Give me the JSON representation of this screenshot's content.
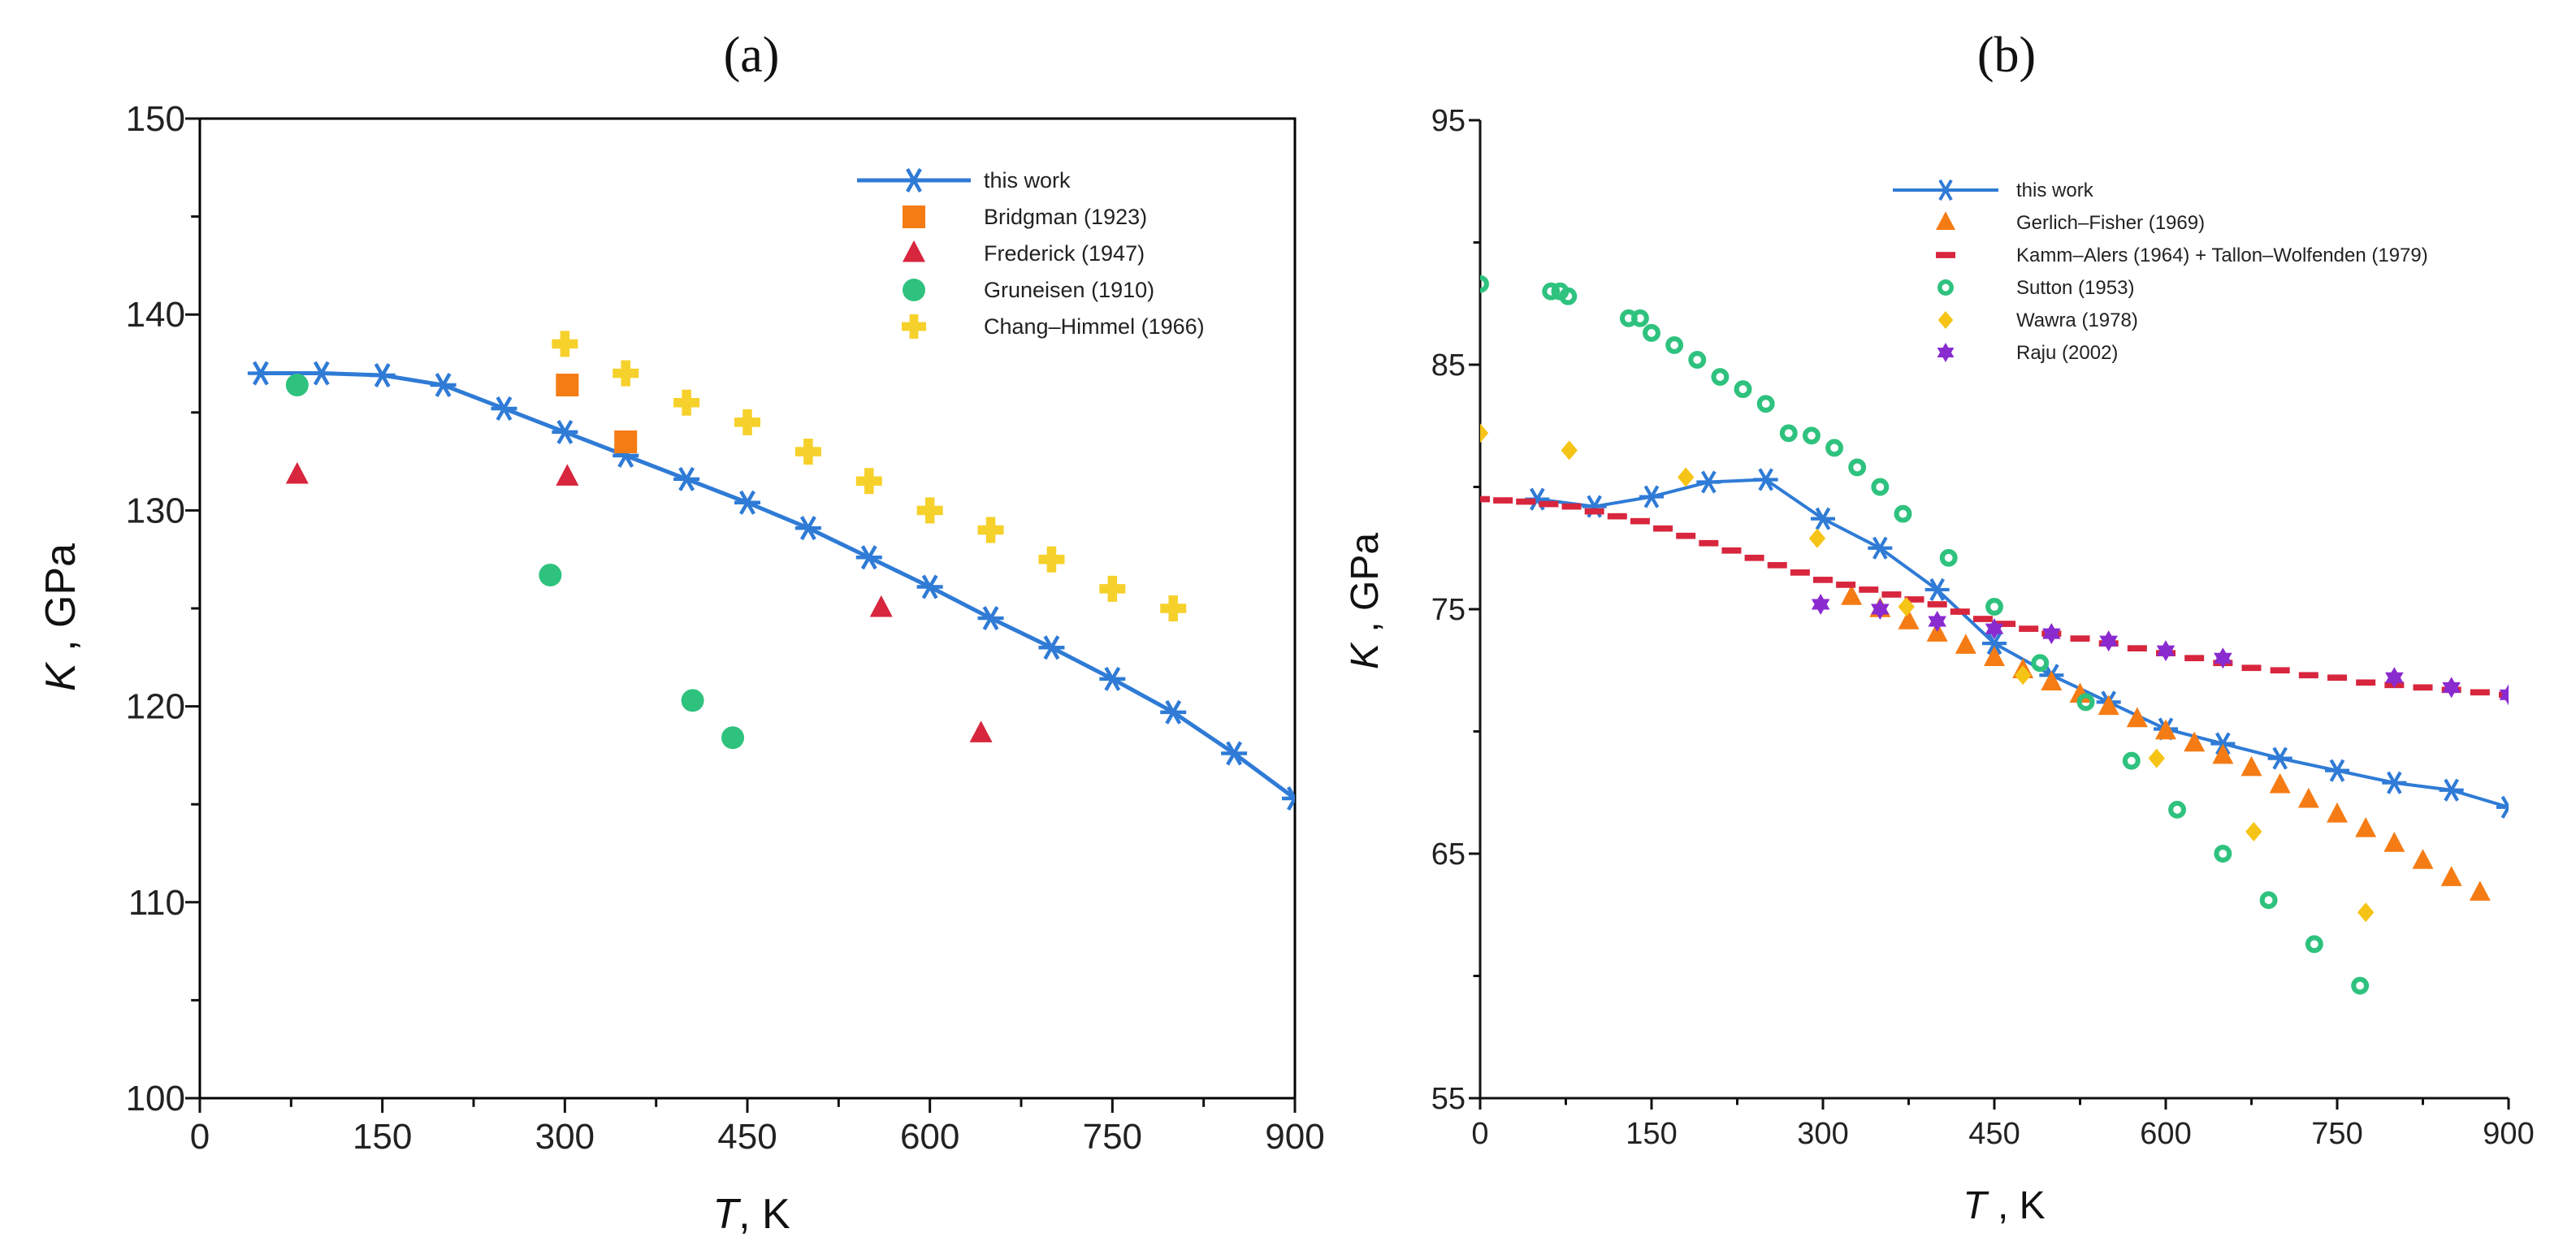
{
  "chart_data": [
    {
      "type": "scatter",
      "panel_label": "(a)",
      "xlabel_var": "T",
      "xlabel_unit": ", K",
      "ylabel_var": "K",
      "ylabel_unit": " , GPa",
      "xlim": [
        0,
        900
      ],
      "ylim": [
        100,
        150
      ],
      "xticks": [
        0,
        150,
        300,
        450,
        600,
        750,
        900
      ],
      "xticks_minor": [
        75,
        225,
        375,
        525,
        675,
        825
      ],
      "yticks": [
        100,
        110,
        120,
        130,
        140,
        150
      ],
      "yticks_minor": [
        105,
        115,
        125,
        135,
        145
      ],
      "grid": false,
      "legend_position": "top-right",
      "series": [
        {
          "name": "this work",
          "marker": "asterisk",
          "line": true,
          "color": "#2f7bd6",
          "x": [
            50,
            100,
            150,
            200,
            250,
            300,
            350,
            400,
            450,
            500,
            550,
            600,
            650,
            700,
            750,
            800,
            850,
            900
          ],
          "y": [
            137.0,
            137.0,
            136.9,
            136.4,
            135.2,
            134.0,
            132.8,
            131.6,
            130.4,
            129.1,
            127.6,
            126.1,
            124.5,
            123.0,
            121.4,
            119.7,
            117.6,
            115.3
          ]
        },
        {
          "name": "Bridgman (1923)",
          "marker": "square",
          "color": "#f57c14",
          "x": [
            302,
            350
          ],
          "y": [
            136.4,
            133.5
          ]
        },
        {
          "name": "Frederick (1947)",
          "marker": "triangle",
          "color": "#d7263d",
          "x": [
            80,
            302,
            560,
            642
          ],
          "y": [
            131.8,
            131.7,
            125.0,
            118.6
          ]
        },
        {
          "name": "Gruneisen (1910)",
          "marker": "circle",
          "color": "#2ec27e",
          "x": [
            80,
            288,
            405,
            438
          ],
          "y": [
            136.4,
            126.7,
            120.3,
            118.4
          ]
        },
        {
          "name": "Chang–Himmel (1966)",
          "marker": "plus",
          "color": "#f6d12b",
          "x": [
            300,
            350,
            400,
            450,
            500,
            550,
            600,
            650,
            700,
            750,
            800
          ],
          "y": [
            138.5,
            137.0,
            135.5,
            134.5,
            133.0,
            131.5,
            130.0,
            129.0,
            127.5,
            126.0,
            125.0
          ]
        }
      ]
    },
    {
      "type": "scatter",
      "panel_label": "(b)",
      "xlabel_var": "T",
      "xlabel_unit": " , K",
      "ylabel_var": "K",
      "ylabel_unit": " , GPa",
      "xlim": [
        0,
        900
      ],
      "ylim": [
        55,
        95
      ],
      "xticks": [
        0,
        150,
        300,
        450,
        600,
        750,
        900
      ],
      "xticks_minor": [
        75,
        225,
        375,
        525,
        675,
        825
      ],
      "yticks": [
        55,
        65,
        75,
        85,
        95
      ],
      "yticks_minor": [
        60,
        70,
        80,
        90
      ],
      "grid": false,
      "legend_position": "top-right",
      "series": [
        {
          "name": "this work",
          "marker": "asterisk",
          "line": true,
          "color": "#2f7bd6",
          "x": [
            50,
            100,
            150,
            200,
            250,
            300,
            350,
            400,
            450,
            500,
            550,
            600,
            650,
            700,
            750,
            800,
            850,
            900
          ],
          "y": [
            79.5,
            79.2,
            79.6,
            80.2,
            80.3,
            78.7,
            77.5,
            75.8,
            73.6,
            72.3,
            71.2,
            70.1,
            69.5,
            68.9,
            68.4,
            67.9,
            67.6,
            66.9
          ]
        },
        {
          "name": "Gerlich–Fisher (1969)",
          "marker": "triangle",
          "color": "#f57c14",
          "x": [
            325,
            350,
            375,
            400,
            425,
            450,
            475,
            500,
            525,
            550,
            575,
            600,
            625,
            650,
            675,
            700,
            725,
            750,
            775,
            800,
            825,
            850,
            875
          ],
          "y": [
            75.5,
            75.0,
            74.5,
            74.0,
            73.5,
            73.0,
            72.5,
            72.0,
            71.5,
            71.0,
            70.5,
            70.0,
            69.5,
            69.0,
            68.5,
            67.8,
            67.2,
            66.6,
            66.0,
            65.4,
            64.7,
            64.0,
            63.4
          ]
        },
        {
          "name": "Kamm–Alers (1964) + Tallon–Wolfenden (1979)",
          "marker": "dash",
          "color": "#d7263d",
          "x": [
            0,
            20,
            40,
            60,
            80,
            100,
            120,
            140,
            160,
            180,
            200,
            220,
            240,
            260,
            280,
            300,
            320,
            340,
            360,
            380,
            400,
            420,
            440,
            460,
            480,
            500,
            525,
            550,
            575,
            600,
            625,
            650,
            675,
            700,
            725,
            750,
            775,
            800,
            825,
            850,
            875,
            900
          ],
          "y": [
            79.5,
            79.45,
            79.4,
            79.3,
            79.2,
            79.0,
            78.8,
            78.6,
            78.3,
            78.0,
            77.7,
            77.4,
            77.1,
            76.8,
            76.5,
            76.2,
            76.0,
            75.8,
            75.6,
            75.4,
            75.2,
            74.9,
            74.6,
            74.4,
            74.2,
            74.0,
            73.8,
            73.6,
            73.4,
            73.2,
            73.0,
            72.8,
            72.6,
            72.5,
            72.3,
            72.2,
            72.0,
            71.9,
            71.8,
            71.7,
            71.6,
            71.5
          ]
        },
        {
          "name": "Sutton (1953)",
          "marker": "ring",
          "color": "#2ec27e",
          "x": [
            0,
            62,
            70,
            77,
            130,
            140,
            150,
            170,
            190,
            210,
            230,
            250,
            270,
            290,
            310,
            330,
            350,
            370,
            410,
            450,
            490,
            530,
            570,
            610,
            650,
            690,
            730,
            770
          ],
          "y": [
            88.3,
            88.0,
            88.0,
            87.8,
            86.9,
            86.9,
            86.3,
            85.8,
            85.2,
            84.5,
            84.0,
            83.4,
            82.2,
            82.1,
            81.6,
            80.8,
            80.0,
            78.9,
            77.1,
            75.1,
            72.8,
            71.2,
            68.8,
            66.8,
            65.0,
            63.1,
            61.3,
            59.6
          ]
        },
        {
          "name": "Wawra (1978)",
          "marker": "diamond",
          "color": "#f6c416",
          "x": [
            0,
            78,
            180,
            295,
            373,
            475,
            592,
            677,
            775
          ],
          "y": [
            82.2,
            81.5,
            80.4,
            77.9,
            75.1,
            72.3,
            68.9,
            65.9,
            62.6
          ]
        },
        {
          "name": "Raju (2002)",
          "marker": "star",
          "color": "#8a2bd0",
          "x": [
            298,
            350,
            400,
            450,
            500,
            550,
            600,
            650,
            800,
            850,
            900
          ],
          "y": [
            75.2,
            75.0,
            74.5,
            74.2,
            74.0,
            73.7,
            73.3,
            73.0,
            72.2,
            71.8,
            71.5
          ]
        }
      ]
    }
  ]
}
